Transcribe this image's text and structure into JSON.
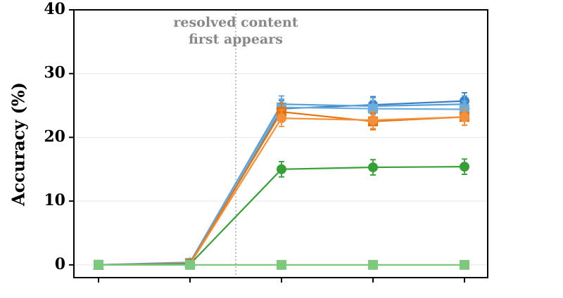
{
  "chart_data": {
    "type": "line",
    "ylabel": "Accuracy (%)",
    "categories": [
      null,
      null,
      null,
      null,
      null
    ],
    "ylim": [
      -2,
      40
    ],
    "yticks": [
      0,
      10,
      20,
      30,
      40
    ],
    "grid": true,
    "reference_line": {
      "x": 1.5,
      "label": [
        "resolved content",
        "first appears"
      ]
    },
    "series": [
      {
        "color": "#3b7fc4",
        "marker": "circle",
        "values": [
          0,
          0.3,
          24.5,
          25.1,
          25.7
        ],
        "errors": [
          0.1,
          0.2,
          1.3,
          1.3,
          1.3
        ]
      },
      {
        "color": "#5a9fd8",
        "marker": "triangle",
        "values": [
          0,
          0.4,
          25.2,
          24.9,
          25.2
        ],
        "errors": [
          0.1,
          0.2,
          1.3,
          1.3,
          1.3
        ]
      },
      {
        "color": "#6aaee0",
        "marker": "square",
        "values": [
          0,
          0.3,
          24.7,
          24.5,
          24.4
        ],
        "errors": [
          0.1,
          0.2,
          1.3,
          1.3,
          1.3
        ]
      },
      {
        "color": "#e8710a",
        "marker": "square",
        "values": [
          0,
          0.2,
          24.0,
          22.5,
          23.2
        ],
        "errors": [
          0.1,
          0.2,
          1.3,
          1.3,
          1.3
        ]
      },
      {
        "color": "#f58f3a",
        "marker": "circle",
        "values": [
          0,
          0.1,
          23.0,
          22.7,
          23.2
        ],
        "errors": [
          0.1,
          0.2,
          1.3,
          1.3,
          1.3
        ]
      },
      {
        "color": "#35a035",
        "marker": "circle",
        "values": [
          0,
          0.1,
          15.0,
          15.3,
          15.4
        ],
        "errors": [
          0.1,
          0.1,
          1.2,
          1.2,
          1.2
        ]
      },
      {
        "color": "#7cc87c",
        "marker": "square",
        "values": [
          0,
          0,
          0,
          0,
          0
        ],
        "errors": [
          0,
          0,
          0,
          0,
          0
        ]
      }
    ]
  }
}
